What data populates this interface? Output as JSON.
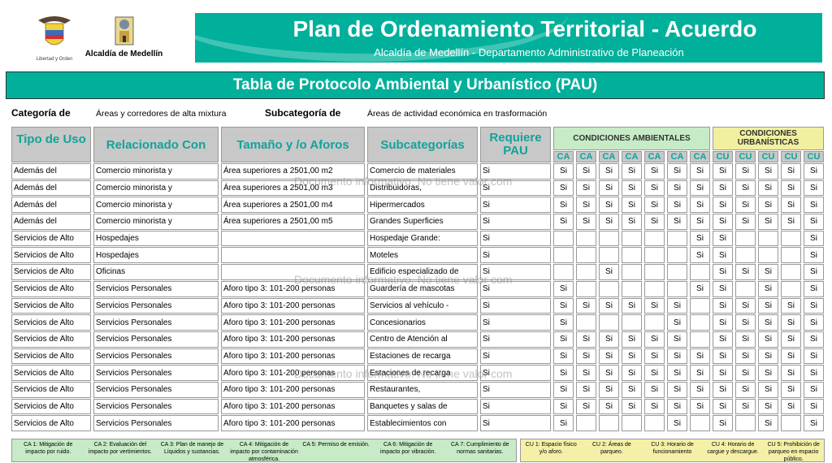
{
  "logos": {
    "colombia_caption": "Libertad y Orden",
    "medellin_caption": "Alcaldía de Medellín"
  },
  "header": {
    "title": "Plan de Ordenamiento Territorial - Acuerdo",
    "subtitle": "Alcaldía de Medellín - Departamento Administrativo de Planeación"
  },
  "table_title": "Tabla de Protocolo Ambiental y Urbanístico (PAU)",
  "category": {
    "label": "Categoría de",
    "value": "Áreas y corredores de alta mixtura",
    "sub_label": "Subcategoría de",
    "sub_value": "Áreas de actividad económica en trasformación"
  },
  "columns": {
    "tipo": "Tipo de Uso",
    "rel": "Relacionado Con",
    "tam": "Tamaño y /o Aforos",
    "sub": "Subcategorías",
    "pau": "Requiere PAU",
    "ca_group": "CONDICIONES AMBIENTALES",
    "cu_group": "CONDICIONES URBANÍSTICAS",
    "ca": "CA",
    "cu": "CU"
  },
  "colors": {
    "teal": "#00b09b",
    "ca_bg": "#c6ebc6",
    "cu_bg": "#f0f0a0"
  },
  "rows": [
    {
      "tipo": "Además del",
      "rel": "Comercio minorista y",
      "tam": "Área superiores a 2501,00 m2",
      "sub": "Comercio de materiales",
      "pau": "Si",
      "ca": [
        "Si",
        "Si",
        "Si",
        "Si",
        "Si",
        "Si",
        "Si"
      ],
      "cu": [
        "Si",
        "Si",
        "Si",
        "Si",
        "Si"
      ]
    },
    {
      "tipo": "Además del",
      "rel": "Comercio minorista y",
      "tam": "Área superiores a 2501,00 m3",
      "sub": "Distribuidoras,",
      "pau": "Si",
      "ca": [
        "Si",
        "Si",
        "Si",
        "Si",
        "Si",
        "Si",
        "Si"
      ],
      "cu": [
        "Si",
        "Si",
        "Si",
        "Si",
        "Si"
      ]
    },
    {
      "tipo": "Además del",
      "rel": "Comercio minorista y",
      "tam": "Área superiores a 2501,00 m4",
      "sub": "Hipermercados",
      "pau": "Si",
      "ca": [
        "Si",
        "Si",
        "Si",
        "Si",
        "Si",
        "Si",
        "Si"
      ],
      "cu": [
        "Si",
        "Si",
        "Si",
        "Si",
        "Si"
      ]
    },
    {
      "tipo": "Además del",
      "rel": "Comercio minorista y",
      "tam": "Área superiores a 2501,00 m5",
      "sub": "Grandes Superficies",
      "pau": "Si",
      "ca": [
        "Si",
        "Si",
        "Si",
        "Si",
        "Si",
        "Si",
        "Si"
      ],
      "cu": [
        "Si",
        "Si",
        "Si",
        "Si",
        "Si"
      ]
    },
    {
      "tipo": "Servicios de Alto",
      "rel": "Hospedajes",
      "tam": "",
      "sub": "Hospedaje Grande:",
      "pau": "Si",
      "ca": [
        "",
        "",
        "",
        "",
        "",
        "",
        "Si"
      ],
      "cu": [
        "Si",
        "",
        "",
        "",
        "Si"
      ]
    },
    {
      "tipo": "Servicios de Alto",
      "rel": "Hospedajes",
      "tam": "",
      "sub": "Moteles",
      "pau": "Si",
      "ca": [
        "",
        "",
        "",
        "",
        "",
        "",
        "Si"
      ],
      "cu": [
        "Si",
        "",
        "",
        "",
        "Si"
      ]
    },
    {
      "tipo": "Servicios de Alto",
      "rel": "Oficinas",
      "tam": "",
      "sub": "Edificio especializado de",
      "pau": "Si",
      "ca": [
        "",
        "",
        "Si",
        "",
        "",
        "",
        ""
      ],
      "cu": [
        "Si",
        "Si",
        "Si",
        "",
        "Si"
      ]
    },
    {
      "tipo": "Servicios de Alto",
      "rel": "Servicios Personales",
      "tam": "Aforo tipo 3: 101-200 personas",
      "sub": "Guardería de mascotas",
      "pau": "Si",
      "ca": [
        "Si",
        "",
        "",
        "",
        "",
        "",
        "Si"
      ],
      "cu": [
        "Si",
        "",
        "Si",
        "",
        "Si"
      ]
    },
    {
      "tipo": "Servicios de Alto",
      "rel": "Servicios Personales",
      "tam": "Aforo tipo 3: 101-200 personas",
      "sub": "Servicios al vehículo -",
      "pau": "Si",
      "ca": [
        "Si",
        "Si",
        "Si",
        "Si",
        "Si",
        "Si",
        ""
      ],
      "cu": [
        "Si",
        "Si",
        "Si",
        "Si",
        "Si"
      ]
    },
    {
      "tipo": "Servicios de Alto",
      "rel": "Servicios Personales",
      "tam": "Aforo tipo 3: 101-200 personas",
      "sub": "Concesionarios",
      "pau": "Si",
      "ca": [
        "Si",
        "",
        "",
        "",
        "",
        "Si",
        ""
      ],
      "cu": [
        "Si",
        "Si",
        "Si",
        "Si",
        "Si"
      ]
    },
    {
      "tipo": "Servicios de Alto",
      "rel": "Servicios Personales",
      "tam": "Aforo tipo 3: 101-200 personas",
      "sub": "Centro de Atención al",
      "pau": "Si",
      "ca": [
        "Si",
        "Si",
        "Si",
        "Si",
        "Si",
        "Si",
        ""
      ],
      "cu": [
        "Si",
        "Si",
        "Si",
        "Si",
        "Si"
      ]
    },
    {
      "tipo": "Servicios de Alto",
      "rel": "Servicios Personales",
      "tam": "Aforo tipo 3: 101-200 personas",
      "sub": "Estaciones de recarga",
      "pau": "Si",
      "ca": [
        "Si",
        "Si",
        "Si",
        "Si",
        "Si",
        "Si",
        "Si"
      ],
      "cu": [
        "Si",
        "Si",
        "Si",
        "Si",
        "Si"
      ]
    },
    {
      "tipo": "Servicios de Alto",
      "rel": "Servicios Personales",
      "tam": "Aforo tipo 3: 101-200 personas",
      "sub": "Estaciones de recarga",
      "pau": "Si",
      "ca": [
        "Si",
        "Si",
        "Si",
        "Si",
        "Si",
        "Si",
        "Si"
      ],
      "cu": [
        "Si",
        "Si",
        "Si",
        "Si",
        "Si"
      ]
    },
    {
      "tipo": "Servicios de Alto",
      "rel": "Servicios Personales",
      "tam": "Aforo tipo 3: 101-200 personas",
      "sub": "Restaurantes,",
      "pau": "Si",
      "ca": [
        "Si",
        "Si",
        "Si",
        "Si",
        "Si",
        "Si",
        "Si"
      ],
      "cu": [
        "Si",
        "Si",
        "Si",
        "Si",
        "Si"
      ]
    },
    {
      "tipo": "Servicios de Alto",
      "rel": "Servicios Personales",
      "tam": "Aforo tipo 3: 101-200 personas",
      "sub": "Banquetes y salas de",
      "pau": "Si",
      "ca": [
        "Si",
        "Si",
        "Si",
        "Si",
        "Si",
        "Si",
        "Si"
      ],
      "cu": [
        "Si",
        "Si",
        "Si",
        "Si",
        "Si"
      ]
    },
    {
      "tipo": "Servicios de Alto",
      "rel": "Servicios Personales",
      "tam": "Aforo tipo 3: 101-200 personas",
      "sub": "Establecimientos con",
      "pau": "Si",
      "ca": [
        "Si",
        "",
        "",
        "",
        "",
        "Si",
        ""
      ],
      "cu": [
        "Si",
        "",
        "Si",
        "",
        "Si"
      ]
    }
  ],
  "watermark": "Documento informativo. No tiene valor com",
  "legend": {
    "ca": [
      "CA 1: Mitigación de impacto por ruido.",
      "CA 2: Evaluación del impacto por vertimientos.",
      "CA 3: Plan de manejo de Líquidos y sustancias.",
      "CA 4: Mitigación de impacto por contaminación atmosférica.",
      "CA 5: Permiso de emisión.",
      "CA 6: Mitigación de impacto por vibración.",
      "CA 7: Cumplimiento de normas sanitarias."
    ],
    "cu": [
      "CU 1: Espacio físico y/o aforo.",
      "CU 2: Áreas de parqueo.",
      "CU 3: Horario de funcionamiento",
      "CU 4: Horario de cargue y descargue.",
      "CU 5: Prohibición de parqueo en espacio público."
    ]
  }
}
